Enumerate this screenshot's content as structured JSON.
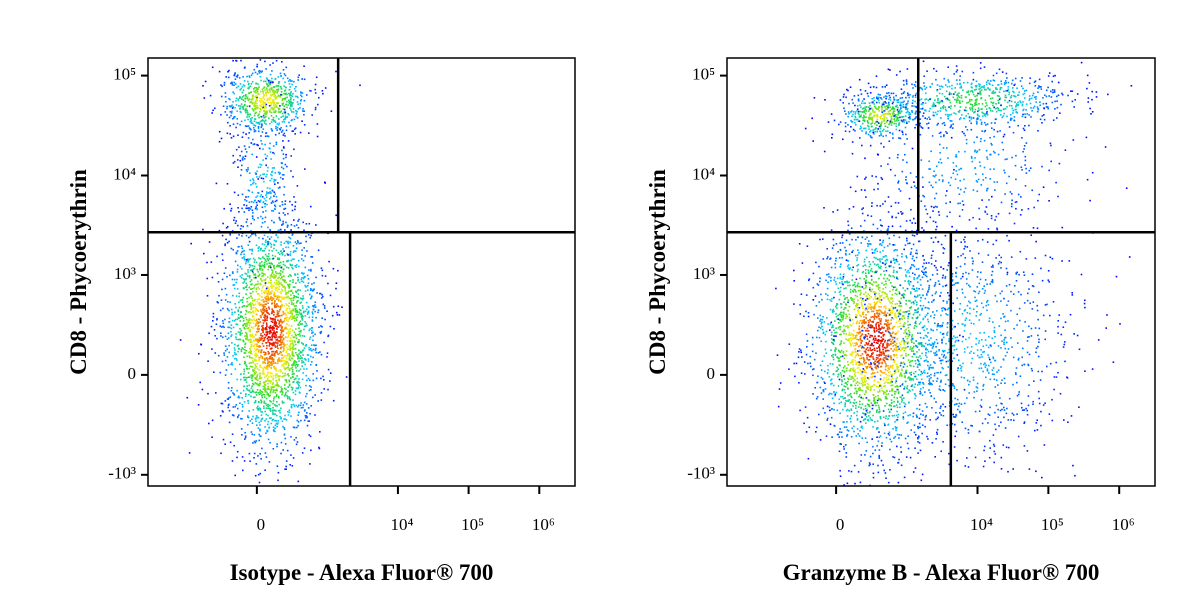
{
  "chart_data": [
    {
      "type": "scatter",
      "x_label": "Isotype - Alexa Fluor® 700",
      "y_label": "CD8 - Phycoerythrin",
      "scale": "biexponential",
      "xlim": [
        -3500,
        3200000
      ],
      "ylim": [
        -1300,
        150000
      ],
      "xticks": [
        0,
        {
          "value": 10000,
          "label": "10⁴"
        },
        {
          "value": 100000,
          "label": "10⁵"
        },
        {
          "value": 1000000,
          "label": "10⁶"
        }
      ],
      "yticks": [
        {
          "value": -1000,
          "label": "-10³"
        },
        0,
        {
          "value": 1000,
          "label": "10³"
        },
        {
          "value": 10000,
          "label": "10⁴"
        },
        {
          "value": 100000,
          "label": "10⁵"
        }
      ],
      "quadrant_gates": {
        "y": 2700,
        "x_upper": 1420,
        "x_lower": 2100
      }
    },
    {
      "type": "scatter",
      "x_label": "Granzyme B - Alexa Fluor® 700",
      "y_label": "CD8 - Phycoerythrin",
      "scale": "biexponential",
      "xlim": [
        -3500,
        3200000
      ],
      "ylim": [
        -1300,
        150000
      ],
      "xticks": [
        0,
        {
          "value": 10000,
          "label": "10⁴"
        },
        {
          "value": 100000,
          "label": "10⁵"
        },
        {
          "value": 1000000,
          "label": "10⁶"
        }
      ],
      "yticks": [
        {
          "value": -1000,
          "label": "-10³"
        },
        0,
        {
          "value": 1000,
          "label": "10³"
        },
        {
          "value": 10000,
          "label": "10⁴"
        },
        {
          "value": 100000,
          "label": "10⁵"
        }
      ],
      "quadrant_gates": {
        "y": 2700,
        "x_upper": 1450,
        "x_lower": 4200
      }
    }
  ]
}
